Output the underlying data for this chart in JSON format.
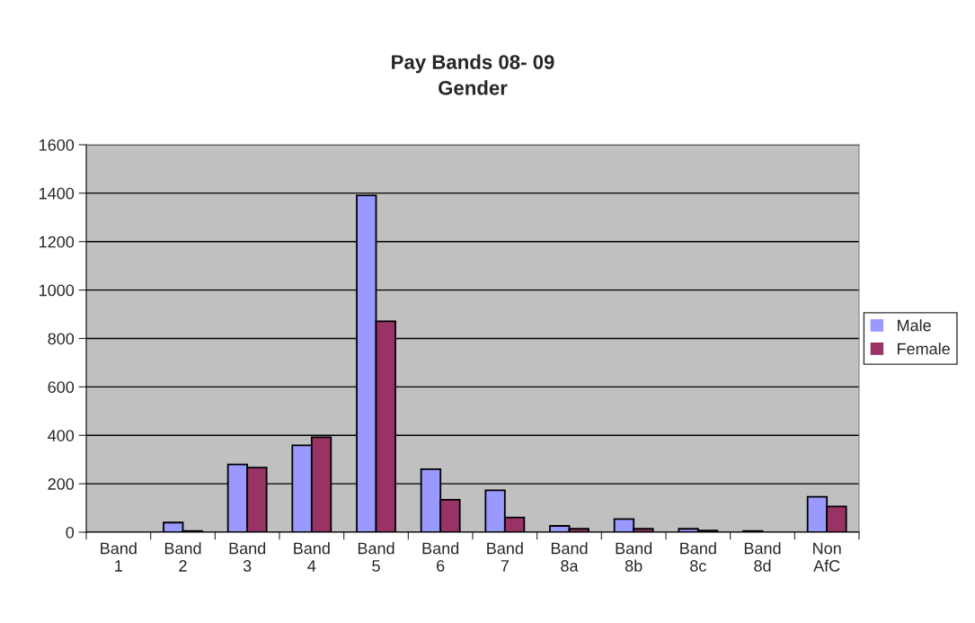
{
  "chart_data": {
    "type": "bar",
    "title": "Pay Bands 08- 09\nGender",
    "categories": [
      "Band\n1",
      "Band\n2",
      "Band\n3",
      "Band\n4",
      "Band\n5",
      "Band\n6",
      "Band\n7",
      "Band\n8a",
      "Band\n8b",
      "Band\n8c",
      "Band\n8d",
      "Non\nAfC"
    ],
    "series": [
      {
        "name": "Male",
        "color": "#9999ff",
        "values": [
          0,
          40,
          280,
          359,
          1391,
          260,
          173,
          26,
          54,
          14,
          5,
          146
        ]
      },
      {
        "name": "Female",
        "color": "#993366",
        "values": [
          0,
          5,
          267,
          392,
          871,
          134,
          61,
          14,
          14,
          7,
          0,
          106
        ]
      }
    ],
    "ylim": [
      0,
      1600
    ],
    "yticks": [
      0,
      200,
      400,
      600,
      800,
      1000,
      1200,
      1400,
      1600
    ],
    "grid": "y",
    "legend": "right"
  }
}
